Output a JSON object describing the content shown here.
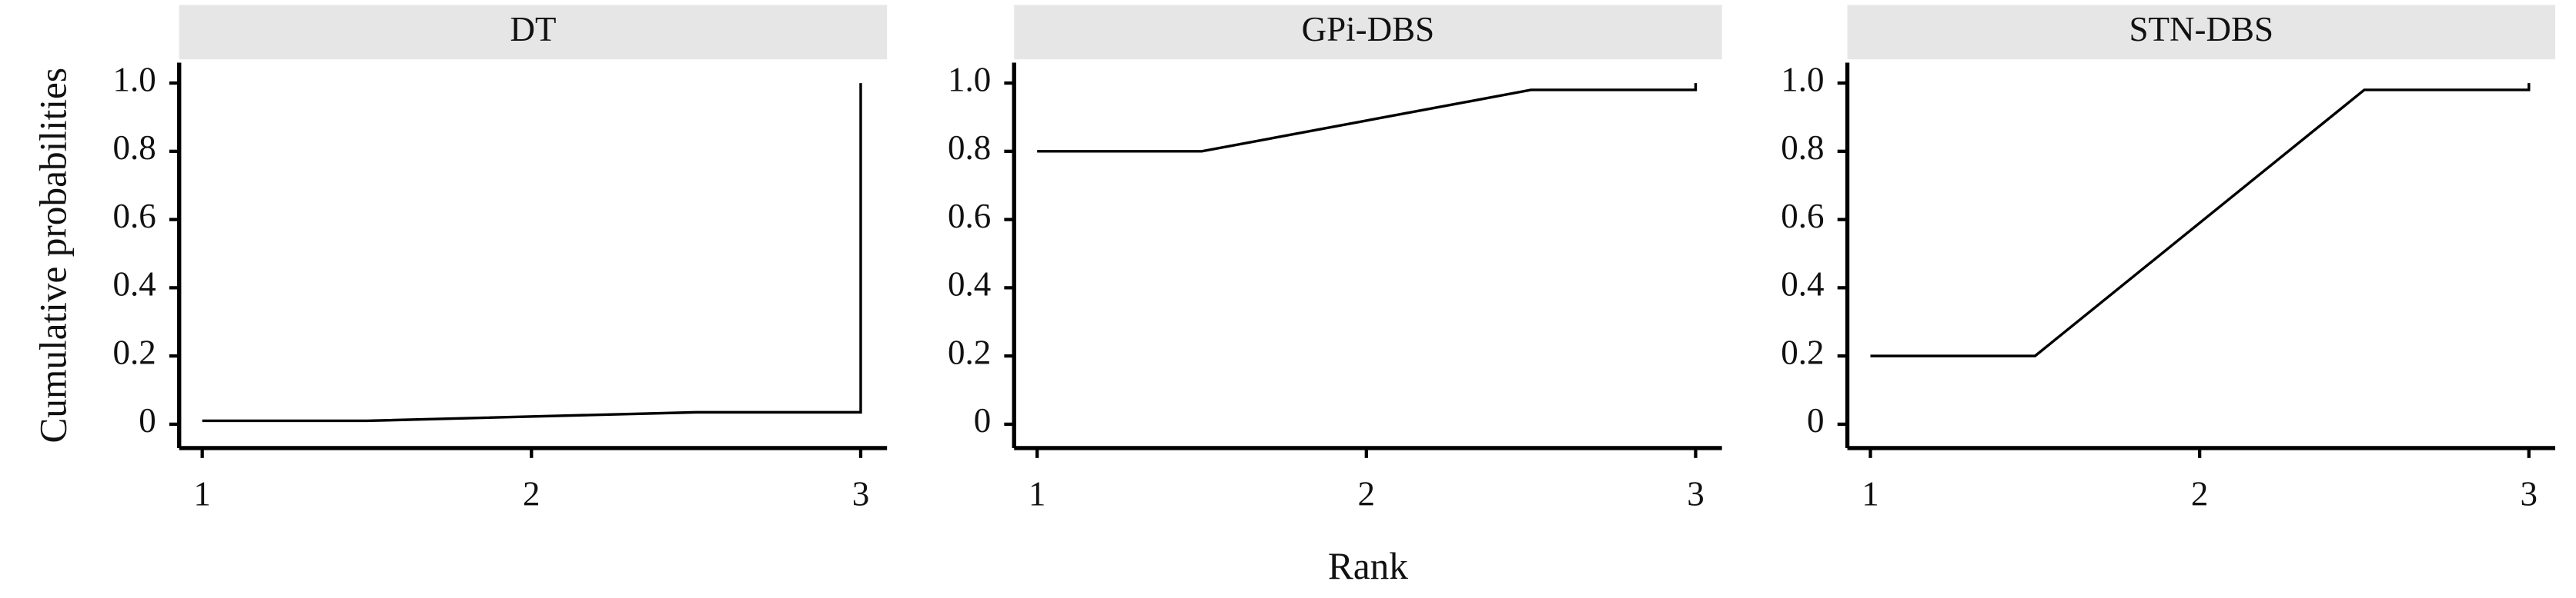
{
  "chart_data": [
    {
      "type": "line",
      "title": "DT",
      "y_label": "Cumulative probabilities",
      "x": [
        1,
        1.5,
        2.5,
        3,
        3
      ],
      "values": [
        0.01,
        0.01,
        0.035,
        0.035,
        1.0
      ],
      "color": "#000000",
      "xlim": [
        0.93,
        3.08
      ],
      "ylim": [
        -0.07,
        1.06
      ],
      "xticks": [
        1,
        2,
        3
      ],
      "yticks": [
        0,
        0.2,
        0.4,
        0.6,
        0.8,
        {
          "value": 1,
          "label": "1.0"
        }
      ]
    },
    {
      "type": "line",
      "title": "GPi-DBS",
      "x_label": "Rank",
      "x": [
        1,
        1.5,
        2.5,
        3,
        3
      ],
      "values": [
        0.8,
        0.8,
        0.98,
        0.98,
        1.0
      ],
      "color": "#000000",
      "xlim": [
        0.93,
        3.08
      ],
      "ylim": [
        -0.07,
        1.06
      ],
      "xticks": [
        1,
        2,
        3
      ],
      "yticks": [
        0,
        0.2,
        0.4,
        0.6,
        0.8,
        {
          "value": 1,
          "label": "1.0"
        }
      ]
    },
    {
      "type": "line",
      "title": "STN-DBS",
      "x": [
        1,
        1.5,
        2.5,
        3,
        3
      ],
      "values": [
        0.2,
        0.2,
        0.98,
        0.98,
        1.0
      ],
      "color": "#000000",
      "xlim": [
        0.93,
        3.08
      ],
      "ylim": [
        -0.07,
        1.06
      ],
      "xticks": [
        1,
        2,
        3
      ],
      "yticks": [
        0,
        0.2,
        0.4,
        0.6,
        0.8,
        {
          "value": 1,
          "label": "1.0"
        }
      ]
    }
  ]
}
